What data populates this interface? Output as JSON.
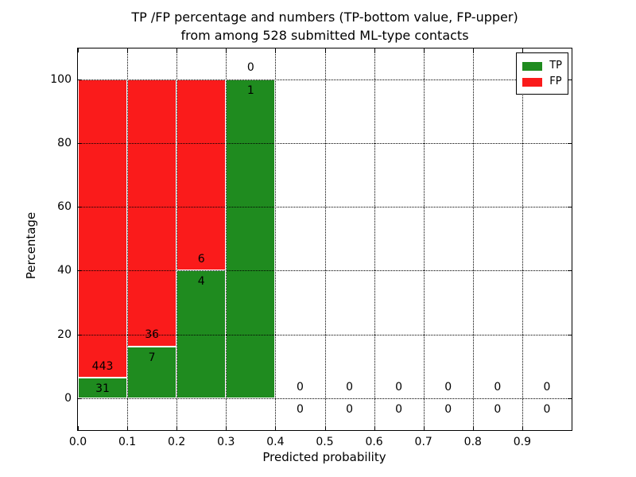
{
  "figure": {
    "background": "#ffffff"
  },
  "chart_data": {
    "type": "bar",
    "stacked": true,
    "title_lines": [
      "TP /FP percentage and numbers (TP-bottom value, FP-upper)",
      "from among 528 submitted ML-type contacts"
    ],
    "title": "TP /FP percentage and numbers (TP-bottom value, FP-upper) from among 528 submitted ML-type contacts",
    "xlabel": "Predicted probability",
    "ylabel": "Percentage",
    "total_contacts": 528,
    "xlim": [
      0.0,
      1.0
    ],
    "ylim": [
      -10,
      109.6
    ],
    "grid": true,
    "xticks": [
      {
        "value": 0.0,
        "label": "0.0"
      },
      {
        "value": 0.1,
        "label": "0.1"
      },
      {
        "value": 0.2,
        "label": "0.2"
      },
      {
        "value": 0.3,
        "label": "0.3"
      },
      {
        "value": 0.4,
        "label": "0.4"
      },
      {
        "value": 0.5,
        "label": "0.5"
      },
      {
        "value": 0.6,
        "label": "0.6"
      },
      {
        "value": 0.7,
        "label": "0.7"
      },
      {
        "value": 0.8,
        "label": "0.8"
      },
      {
        "value": 0.9,
        "label": "0.9"
      }
    ],
    "yticks": [
      {
        "value": 0,
        "label": "0"
      },
      {
        "value": 20,
        "label": "20"
      },
      {
        "value": 40,
        "label": "40"
      },
      {
        "value": 60,
        "label": "60"
      },
      {
        "value": 80,
        "label": "80"
      },
      {
        "value": 100,
        "label": "100"
      }
    ],
    "colors": {
      "tp": "#1f8b1f",
      "fp": "#fa1b1b",
      "bar_edge": "#ffffff"
    },
    "legend": {
      "position": "upper right",
      "entries": [
        {
          "label": "TP",
          "color": "#1f8b1f"
        },
        {
          "label": "FP",
          "color": "#fa1b1b"
        }
      ]
    },
    "label_offset_pct": 3.5,
    "bins": [
      {
        "x_start": 0.0,
        "x_end": 0.1,
        "tp_count": 31,
        "fp_count": 443,
        "tp_pct": 6.54,
        "fp_pct": 93.46
      },
      {
        "x_start": 0.1,
        "x_end": 0.2,
        "tp_count": 7,
        "fp_count": 36,
        "tp_pct": 16.28,
        "fp_pct": 83.72
      },
      {
        "x_start": 0.2,
        "x_end": 0.3,
        "tp_count": 4,
        "fp_count": 6,
        "tp_pct": 40.0,
        "fp_pct": 60.0
      },
      {
        "x_start": 0.3,
        "x_end": 0.4,
        "tp_count": 1,
        "fp_count": 0,
        "tp_pct": 100.0,
        "fp_pct": 0.0
      },
      {
        "x_start": 0.4,
        "x_end": 0.5,
        "tp_count": 0,
        "fp_count": 0,
        "tp_pct": 0.0,
        "fp_pct": 0.0
      },
      {
        "x_start": 0.5,
        "x_end": 0.6,
        "tp_count": 0,
        "fp_count": 0,
        "tp_pct": 0.0,
        "fp_pct": 0.0
      },
      {
        "x_start": 0.6,
        "x_end": 0.7,
        "tp_count": 0,
        "fp_count": 0,
        "tp_pct": 0.0,
        "fp_pct": 0.0
      },
      {
        "x_start": 0.7,
        "x_end": 0.8,
        "tp_count": 0,
        "fp_count": 0,
        "tp_pct": 0.0,
        "fp_pct": 0.0
      },
      {
        "x_start": 0.8,
        "x_end": 0.9,
        "tp_count": 0,
        "fp_count": 0,
        "tp_pct": 0.0,
        "fp_pct": 0.0
      },
      {
        "x_start": 0.9,
        "x_end": 1.0,
        "tp_count": 0,
        "fp_count": 0,
        "tp_pct": 0.0,
        "fp_pct": 0.0
      }
    ]
  }
}
